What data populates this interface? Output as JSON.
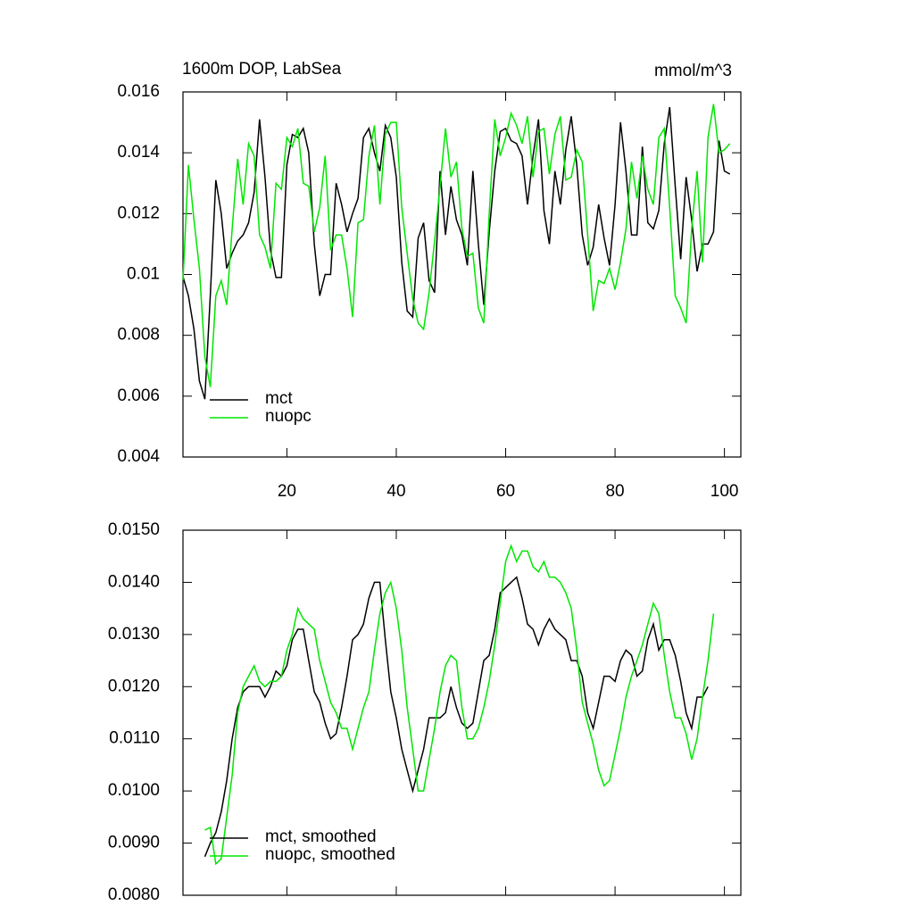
{
  "chart_data": [
    {
      "type": "line",
      "title": "1600m DOP, LabSea",
      "units": "mmol/m^3",
      "x": [
        1,
        2,
        3,
        4,
        5,
        6,
        7,
        8,
        9,
        10,
        11,
        12,
        13,
        14,
        15,
        16,
        17,
        18,
        19,
        20,
        21,
        22,
        23,
        24,
        25,
        26,
        27,
        28,
        29,
        30,
        31,
        32,
        33,
        34,
        35,
        36,
        37,
        38,
        39,
        40,
        41,
        42,
        43,
        44,
        45,
        46,
        47,
        48,
        49,
        50,
        51,
        52,
        53,
        54,
        55,
        56,
        57,
        58,
        59,
        60,
        61,
        62,
        63,
        64,
        65,
        66,
        67,
        68,
        69,
        70,
        71,
        72,
        73,
        74,
        75,
        76,
        77,
        78,
        79,
        80,
        81,
        82,
        83,
        84,
        85,
        86,
        87,
        88,
        89,
        90,
        91,
        92,
        93,
        94,
        95,
        96,
        97,
        98,
        99,
        100,
        101
      ],
      "series": [
        {
          "name": "mct",
          "color": "#000000",
          "values": [
            0.00993,
            0.0093,
            0.0082,
            0.0065,
            0.0059,
            0.0093,
            0.0131,
            0.012,
            0.0102,
            0.0107,
            0.0111,
            0.0113,
            0.0117,
            0.0127,
            0.0151,
            0.0132,
            0.0108,
            0.0099,
            0.0099,
            0.0136,
            0.0146,
            0.0145,
            0.0148,
            0.014,
            0.011,
            0.0093,
            0.01,
            0.01,
            0.013,
            0.0123,
            0.0114,
            0.012,
            0.0125,
            0.0145,
            0.0148,
            0.014,
            0.0134,
            0.0149,
            0.0145,
            0.0132,
            0.0104,
            0.0088,
            0.0086,
            0.0112,
            0.0117,
            0.0098,
            0.0094,
            0.0134,
            0.0113,
            0.0129,
            0.0118,
            0.0113,
            0.0103,
            0.0134,
            0.011,
            0.009,
            0.0114,
            0.0134,
            0.0147,
            0.0148,
            0.0144,
            0.0143,
            0.0139,
            0.0123,
            0.0139,
            0.0151,
            0.0121,
            0.011,
            0.0134,
            0.0123,
            0.0141,
            0.0152,
            0.0136,
            0.0113,
            0.0103,
            0.0109,
            0.0123,
            0.0112,
            0.0103,
            0.0123,
            0.015,
            0.0134,
            0.0113,
            0.0113,
            0.0142,
            0.0117,
            0.0115,
            0.0121,
            0.0143,
            0.0155,
            0.0129,
            0.0105,
            0.0132,
            0.0118,
            0.0101,
            0.011,
            0.011,
            0.0114,
            0.0144,
            0.0134,
            0.0133
          ]
        },
        {
          "name": "nuopc",
          "color": "#00e600",
          "values": [
            0.0098,
            0.0136,
            0.0118,
            0.0102,
            0.0073,
            0.0063,
            0.0093,
            0.0098,
            0.009,
            0.0115,
            0.0138,
            0.0123,
            0.0143,
            0.0139,
            0.0113,
            0.0109,
            0.0102,
            0.013,
            0.0128,
            0.0145,
            0.0142,
            0.0148,
            0.013,
            0.0129,
            0.0114,
            0.0122,
            0.0139,
            0.0108,
            0.0113,
            0.0113,
            0.0102,
            0.0086,
            0.0117,
            0.0118,
            0.0139,
            0.0149,
            0.0123,
            0.0146,
            0.015,
            0.015,
            0.0122,
            0.0107,
            0.0092,
            0.0084,
            0.0082,
            0.0094,
            0.0111,
            0.0129,
            0.0148,
            0.0132,
            0.0137,
            0.0115,
            0.0106,
            0.0107,
            0.0089,
            0.0084,
            0.012,
            0.0151,
            0.0139,
            0.0145,
            0.0153,
            0.0149,
            0.0143,
            0.0152,
            0.0132,
            0.0147,
            0.0148,
            0.0133,
            0.0146,
            0.0152,
            0.0131,
            0.0132,
            0.0141,
            0.0137,
            0.0113,
            0.0088,
            0.0098,
            0.0097,
            0.0102,
            0.0095,
            0.0104,
            0.0115,
            0.0137,
            0.0125,
            0.0139,
            0.0128,
            0.0123,
            0.0145,
            0.0148,
            0.0122,
            0.0093,
            0.0089,
            0.0084,
            0.0115,
            0.0134,
            0.0104,
            0.0145,
            0.0156,
            0.014,
            0.0141,
            0.0143
          ]
        }
      ],
      "xlim": [
        1,
        103
      ],
      "ylim": [
        0.004,
        0.016
      ],
      "xticks": [
        20,
        40,
        60,
        80,
        100
      ],
      "show_xtick_labels": true,
      "yticks": [
        0.004,
        0.006,
        0.008,
        0.01,
        0.012,
        0.014,
        0.016
      ],
      "legend": "lower left"
    },
    {
      "type": "line",
      "x": [
        5,
        6,
        7,
        8,
        9,
        10,
        11,
        12,
        13,
        14,
        15,
        16,
        17,
        18,
        19,
        20,
        21,
        22,
        23,
        24,
        25,
        26,
        27,
        28,
        29,
        30,
        31,
        32,
        33,
        34,
        35,
        36,
        37,
        38,
        39,
        40,
        41,
        42,
        43,
        44,
        45,
        46,
        47,
        48,
        49,
        50,
        51,
        52,
        53,
        54,
        55,
        56,
        57,
        58,
        59,
        60,
        61,
        62,
        63,
        64,
        65,
        66,
        67,
        68,
        69,
        70,
        71,
        72,
        73,
        74,
        75,
        76,
        77,
        78,
        79,
        80,
        81,
        82,
        83,
        84,
        85,
        86,
        87,
        88,
        89,
        90,
        91,
        92,
        93,
        94,
        95,
        96,
        97,
        98
      ],
      "series": [
        {
          "name": "mct, smoothed",
          "color": "#000000",
          "values": [
            0.00874,
            0.009,
            0.0092,
            0.0096,
            0.0102,
            0.011,
            0.0116,
            0.0119,
            0.012,
            0.012,
            0.012,
            0.0118,
            0.012,
            0.0123,
            0.0122,
            0.0124,
            0.0129,
            0.0131,
            0.0131,
            0.0125,
            0.0119,
            0.0117,
            0.0113,
            0.011,
            0.0111,
            0.0116,
            0.0122,
            0.0129,
            0.013,
            0.0132,
            0.0137,
            0.014,
            0.014,
            0.0129,
            0.0119,
            0.0114,
            0.0108,
            0.0104,
            0.01,
            0.0104,
            0.0108,
            0.0114,
            0.0114,
            0.0114,
            0.0115,
            0.012,
            0.0116,
            0.0113,
            0.0112,
            0.0113,
            0.0119,
            0.0125,
            0.0126,
            0.0131,
            0.0138,
            0.0139,
            0.014,
            0.0141,
            0.0137,
            0.0132,
            0.0131,
            0.0128,
            0.0131,
            0.0133,
            0.0131,
            0.013,
            0.0129,
            0.0125,
            0.0125,
            0.0122,
            0.0115,
            0.0112,
            0.0117,
            0.0122,
            0.0122,
            0.0121,
            0.0125,
            0.0127,
            0.0126,
            0.0122,
            0.0123,
            0.0129,
            0.0132,
            0.0127,
            0.0129,
            0.0129,
            0.0126,
            0.0121,
            0.0115,
            0.0112,
            0.0118,
            0.0118,
            0.012,
            null
          ]
        },
        {
          "name": "nuopc, smoothed",
          "color": "#00e600",
          "values": [
            0.00925,
            0.0093,
            0.0086,
            0.0087,
            0.0095,
            0.0103,
            0.0115,
            0.012,
            0.0122,
            0.0124,
            0.0121,
            0.012,
            0.0121,
            0.0121,
            0.0122,
            0.0127,
            0.013,
            0.0135,
            0.0133,
            0.0132,
            0.0131,
            0.0125,
            0.0121,
            0.0117,
            0.0115,
            0.0112,
            0.0112,
            0.0108,
            0.0112,
            0.0116,
            0.0119,
            0.0127,
            0.0134,
            0.0138,
            0.014,
            0.0135,
            0.0127,
            0.0116,
            0.0108,
            0.01,
            0.01,
            0.0106,
            0.0112,
            0.0119,
            0.0124,
            0.0126,
            0.0125,
            0.0116,
            0.011,
            0.011,
            0.0112,
            0.0116,
            0.0121,
            0.0128,
            0.0136,
            0.0144,
            0.0147,
            0.0144,
            0.0146,
            0.0146,
            0.0143,
            0.0142,
            0.0144,
            0.0141,
            0.0141,
            0.014,
            0.0138,
            0.0135,
            0.0127,
            0.0117,
            0.0113,
            0.0109,
            0.0104,
            0.0101,
            0.0102,
            0.0107,
            0.0112,
            0.0118,
            0.0122,
            0.0125,
            0.0128,
            0.0132,
            0.0136,
            0.0134,
            0.0126,
            0.0119,
            0.0114,
            0.0114,
            0.0111,
            0.0106,
            0.011,
            0.0118,
            0.0125,
            0.0134
          ]
        }
      ],
      "xlim": [
        1,
        103
      ],
      "ylim": [
        0.008,
        0.015
      ],
      "xticks": [
        20,
        40,
        60,
        80,
        100
      ],
      "show_xtick_labels": false,
      "yticks": [
        {
          "value": 0.008,
          "label": "0.0080"
        },
        {
          "value": 0.009,
          "label": "0.0090"
        },
        {
          "value": 0.01,
          "label": "0.0100"
        },
        {
          "value": 0.011,
          "label": "0.0110"
        },
        {
          "value": 0.012,
          "label": "0.0120"
        },
        {
          "value": 0.013,
          "label": "0.0130"
        },
        {
          "value": 0.014,
          "label": "0.0140"
        },
        {
          "value": 0.015,
          "label": "0.0150"
        }
      ],
      "legend": "lower left"
    }
  ]
}
